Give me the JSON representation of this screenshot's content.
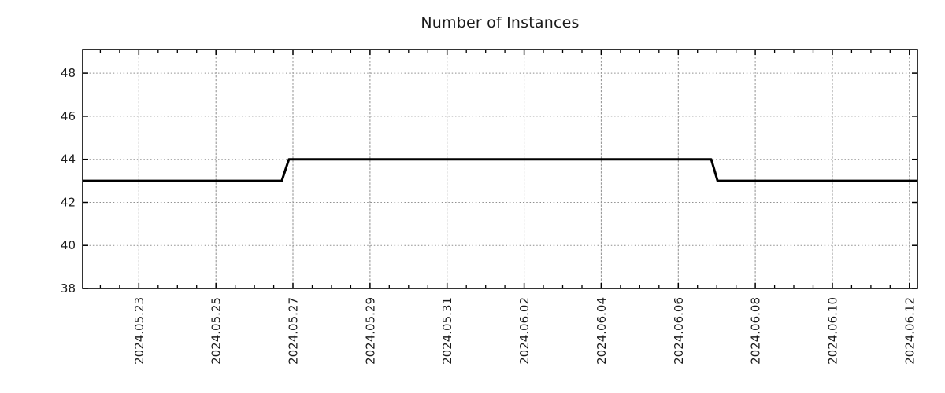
{
  "chart_data": {
    "type": "line",
    "title": "Number of Instances",
    "x_type": "time",
    "xlabel": "",
    "ylabel": "",
    "xlim": [
      "2024-05-21 13:00",
      "2024-06-12 05:00"
    ],
    "ylim": [
      38,
      49.1
    ],
    "grid": {
      "show": true,
      "color": "#8f8f8f"
    },
    "legend": null,
    "axis_color": "#000000",
    "label_color": "#1b1b1b",
    "background": "#ffffff",
    "series": [
      {
        "name": "instances",
        "color": "#000000",
        "width": 3,
        "points": [
          [
            "2024-05-21 13:00",
            43
          ],
          [
            "2024-05-26 17:00",
            43
          ],
          [
            "2024-05-26 21:30",
            44
          ],
          [
            "2024-06-06 20:30",
            44
          ],
          [
            "2024-06-07 00:30",
            43
          ],
          [
            "2024-06-12 05:00",
            43
          ]
        ]
      }
    ],
    "y_ticks": [
      38,
      40,
      42,
      44,
      46,
      48
    ],
    "x_major_ticks": [
      {
        "t": "2024-05-23 00:00",
        "label": "2024.05.23"
      },
      {
        "t": "2024-05-25 00:00",
        "label": "2024.05.25"
      },
      {
        "t": "2024-05-27 00:00",
        "label": "2024.05.27"
      },
      {
        "t": "2024-05-29 00:00",
        "label": "2024.05.29"
      },
      {
        "t": "2024-05-31 00:00",
        "label": "2024.05.31"
      },
      {
        "t": "2024-06-02 00:00",
        "label": "2024.06.02"
      },
      {
        "t": "2024-06-04 00:00",
        "label": "2024.06.04"
      },
      {
        "t": "2024-06-06 00:00",
        "label": "2024.06.06"
      },
      {
        "t": "2024-06-08 00:00",
        "label": "2024.06.08"
      },
      {
        "t": "2024-06-10 00:00",
        "label": "2024.06.10"
      },
      {
        "t": "2024-06-12 00:00",
        "label": "2024.06.12"
      }
    ],
    "x_minor_interval_hours": 12
  }
}
